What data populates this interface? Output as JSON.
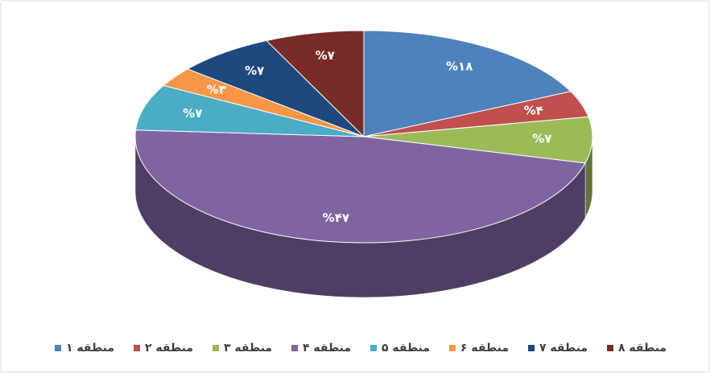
{
  "chart_data": {
    "type": "pie",
    "categories": [
      "منطقه ۱",
      "منطقه ۲",
      "منطقه ۳",
      "منطقه ۴",
      "منطقه ۵",
      "منطقه ۶",
      "منطقه ۷",
      "منطقه ۸"
    ],
    "values": [
      18,
      4,
      7,
      47,
      7,
      3,
      7,
      7
    ],
    "value_labels": [
      "%۱۸",
      "%۴",
      "%۷",
      "%۴۷",
      "%۷",
      "%۳",
      "%۷",
      "%۷"
    ],
    "colors": [
      "#4f81bd",
      "#c0504d",
      "#9bbb59",
      "#8064a2",
      "#4bacc6",
      "#f79646",
      "#1f497d",
      "#772c2a"
    ],
    "legend": "bottom"
  }
}
